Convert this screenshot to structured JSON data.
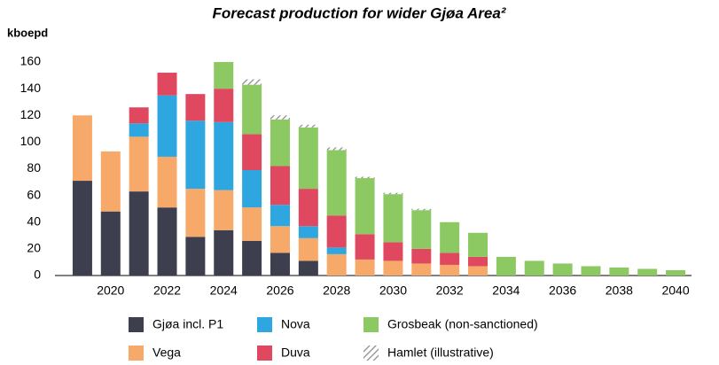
{
  "chart_data": {
    "type": "stacked_bar",
    "title": "Forecast production for wider Gjøa Area²",
    "y_label": "kboepd",
    "categories": [
      null,
      "2020",
      null,
      "2022",
      null,
      "2024",
      null,
      "2026",
      null,
      "2028",
      null,
      "2030",
      null,
      "2032",
      null,
      "2034",
      null,
      "2036",
      null,
      "2038",
      null,
      "2040"
    ],
    "series": [
      {
        "name": "Gjøa incl. P1",
        "color": "#3d3e4e",
        "values": [
          71,
          48,
          63,
          51,
          29,
          34,
          26,
          17,
          11,
          0,
          0,
          0,
          0,
          0,
          0,
          0,
          0,
          0,
          0,
          0,
          0,
          0
        ]
      },
      {
        "name": "Vega",
        "color": "#f7a96a",
        "values": [
          49,
          45,
          41,
          38,
          36,
          30,
          25,
          20,
          17,
          16,
          12,
          11,
          9,
          8,
          7,
          0,
          0,
          0,
          0,
          0,
          0,
          0
        ]
      },
      {
        "name": "Nova",
        "color": "#2ea7e0",
        "values": [
          0,
          0,
          10,
          46,
          51,
          51,
          28,
          16,
          9,
          5,
          0,
          0,
          0,
          0,
          0,
          0,
          0,
          0,
          0,
          0,
          0,
          0
        ]
      },
      {
        "name": "Duva",
        "color": "#e0485f",
        "values": [
          0,
          0,
          12,
          17,
          20,
          25,
          27,
          29,
          28,
          24,
          19,
          14,
          11,
          9,
          7,
          0,
          0,
          0,
          0,
          0,
          0,
          0
        ]
      },
      {
        "name": "Grosbeak (non-sanctioned)",
        "color": "#8dc963",
        "values": [
          0,
          0,
          0,
          0,
          0,
          20,
          37,
          35,
          46,
          49,
          42,
          36,
          29,
          23,
          18,
          14,
          11,
          9,
          7,
          6,
          5,
          4
        ]
      },
      {
        "name": "Hamlet (illustrative)",
        "color": "#8a8a8a",
        "pattern": "hatch",
        "values": [
          0,
          0,
          0,
          0,
          0,
          0,
          4,
          3,
          2,
          2,
          1,
          1,
          1,
          0,
          0,
          0,
          0,
          0,
          0,
          0,
          0,
          0
        ]
      }
    ],
    "ylim": [
      0,
      160
    ],
    "yticks": [
      0,
      20,
      40,
      60,
      80,
      100,
      120,
      140,
      160
    ],
    "grid": false
  }
}
